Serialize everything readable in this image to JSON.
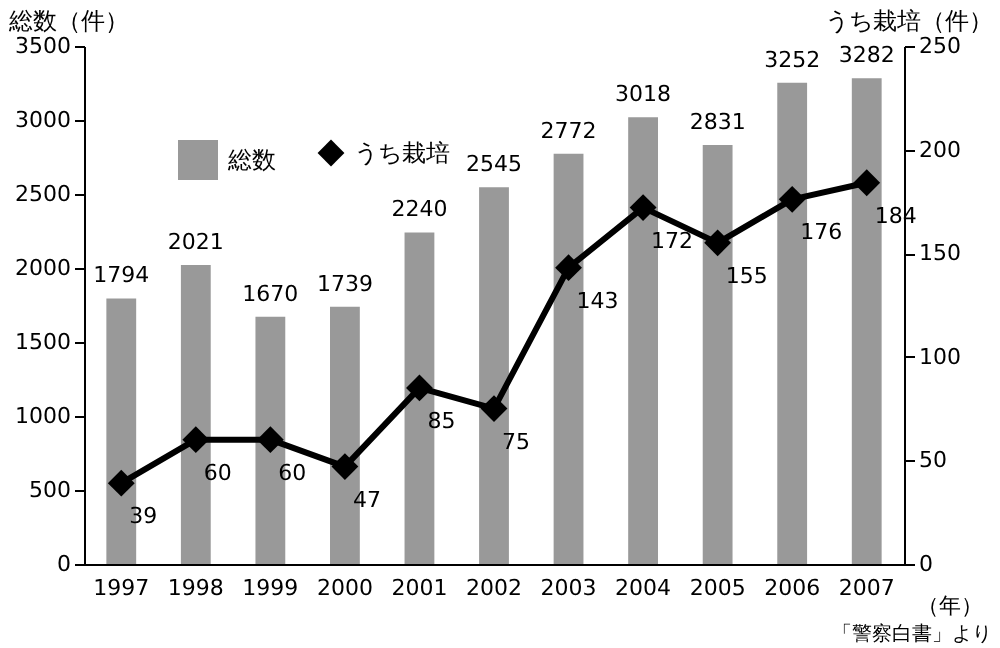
{
  "chart_data": {
    "type": "bar",
    "ylabel": "総数（件）",
    "y2label": "うち栽培（件）",
    "xlabel": "（年）",
    "categories": [
      "1997",
      "1998",
      "1999",
      "2000",
      "2001",
      "2002",
      "2003",
      "2004",
      "2005",
      "2006",
      "2007"
    ],
    "series": [
      {
        "name": "総数",
        "color": "#999999",
        "values": [
          1794,
          2021,
          1670,
          1739,
          2240,
          2545,
          2772,
          3018,
          2831,
          3252,
          3282
        ]
      },
      {
        "name": "うち栽培",
        "type": "line",
        "axis": "y2",
        "color": "#000000",
        "marker": "diamond",
        "values": [
          39,
          60,
          60,
          47,
          85,
          75,
          143,
          172,
          155,
          176,
          184
        ]
      }
    ],
    "ylim": [
      0,
      3500
    ],
    "yticks": [
      0,
      500,
      1000,
      1500,
      2000,
      2500,
      3000,
      3500
    ],
    "y2lim": [
      0,
      250
    ],
    "y2ticks": [
      0,
      50,
      100,
      150,
      200,
      250
    ],
    "data_labels": true,
    "legend": "top left",
    "grid": false,
    "annotations": [
      "「警察白書」より"
    ]
  }
}
